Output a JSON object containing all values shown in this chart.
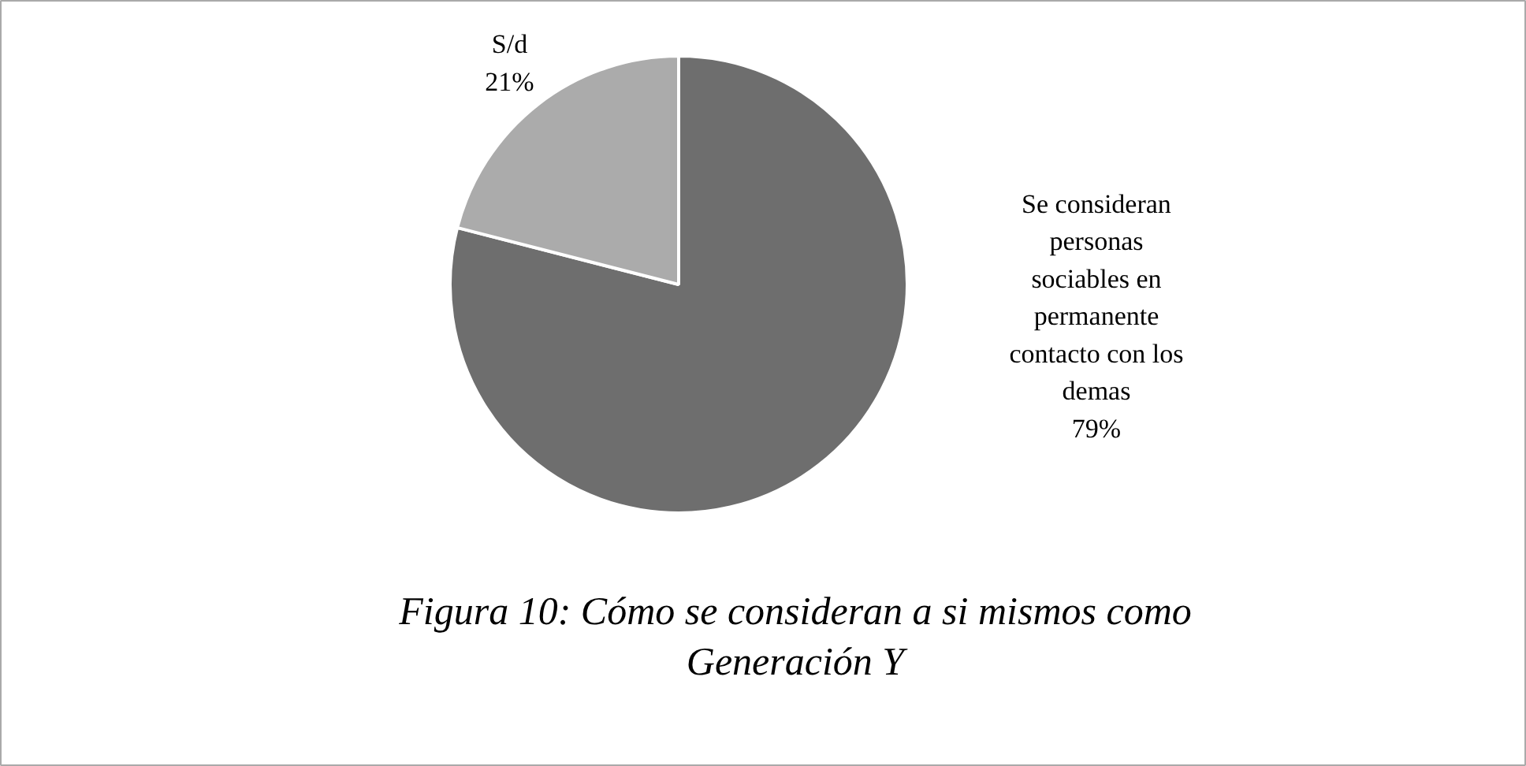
{
  "chart_data": {
    "type": "pie",
    "title": "Figura 10: Cómo se consideran a si mismos como Generación Y",
    "categories": [
      "Se consideran personas sociables en permanente contacto con los demas",
      "S/d"
    ],
    "values": [
      79,
      21
    ],
    "colors": [
      "#6e6e6e",
      "#ababab"
    ],
    "value_labels": [
      "79%",
      "21%"
    ]
  }
}
